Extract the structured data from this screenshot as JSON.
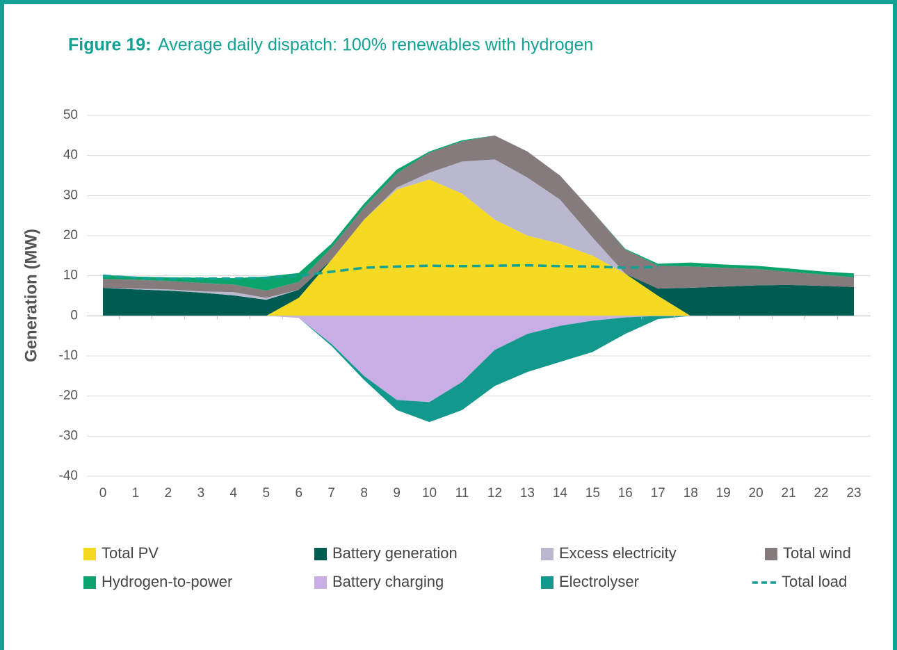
{
  "chart_data": {
    "type": "stacked_area",
    "figure_label": "Figure 19:",
    "title": "Average daily dispatch: 100% renewables with hydrogen",
    "y_label": "Generation (MW)",
    "categories": [
      0,
      1,
      2,
      3,
      4,
      5,
      6,
      7,
      8,
      9,
      10,
      11,
      12,
      13,
      14,
      15,
      16,
      17,
      18,
      19,
      20,
      21,
      22,
      23
    ],
    "ylim": [
      -40,
      50
    ],
    "yticks": [
      -40,
      -30,
      -20,
      -10,
      0,
      10,
      20,
      30,
      40,
      50
    ],
    "grid": true,
    "series": [
      {
        "name": "Total PV",
        "color": "#f5d923",
        "values": [
          0,
          0,
          0,
          0,
          0,
          0,
          4.5,
          14,
          24,
          31.5,
          34,
          30.5,
          24,
          20,
          18,
          15,
          10.5,
          5,
          0,
          0,
          0,
          0,
          0,
          0
        ]
      },
      {
        "name": "Battery generation",
        "color": "#005c50",
        "values": [
          7,
          6.6,
          6.3,
          5.8,
          5.1,
          4,
          2,
          0,
          0,
          0,
          0,
          0,
          0,
          0,
          0,
          0,
          0,
          1.8,
          7,
          7.3,
          7.6,
          7.7,
          7.5,
          7.2
        ]
      },
      {
        "name": "Excess electricity",
        "color": "#b9b8ce",
        "values": [
          0,
          0.2,
          0.3,
          0.3,
          0.8,
          0.5,
          0,
          0,
          0,
          0.5,
          1.7,
          8,
          15,
          14.5,
          11,
          4.5,
          0,
          0,
          0,
          0,
          0,
          0,
          0,
          0
        ]
      },
      {
        "name": "Total wind",
        "color": "#857b7d",
        "values": [
          2.2,
          2.2,
          2.1,
          2.1,
          1.9,
          1.8,
          2,
          3,
          3,
          3.5,
          5,
          5,
          6,
          6.5,
          6,
          6.5,
          6,
          5.7,
          5.3,
          4.7,
          4.1,
          3.3,
          2.8,
          2.4
        ]
      },
      {
        "name": "Hydrogen-to-power",
        "color": "#0aa36b",
        "values": [
          1,
          0.8,
          0.9,
          1.3,
          1.6,
          3.5,
          2.2,
          1,
          1,
          1,
          0.3,
          0.3,
          0,
          0,
          0,
          0,
          0.2,
          0.5,
          1,
          0.8,
          0.8,
          0.8,
          0.8,
          1
        ]
      },
      {
        "name": "Battery charging",
        "color": "#c9aee6",
        "values": [
          0,
          0,
          0,
          0,
          0,
          0,
          -0.5,
          -7,
          -15,
          -21,
          -21.5,
          -16.5,
          -8.5,
          -4.5,
          -2.5,
          -1.2,
          -0.4,
          0,
          0,
          0,
          0,
          0,
          0,
          0
        ]
      },
      {
        "name": "Electrolyser",
        "color": "#12988c",
        "values": [
          0,
          0,
          0,
          0,
          0,
          0,
          0,
          -0.5,
          -1,
          -2.5,
          -5,
          -7,
          -9,
          -9.5,
          -9,
          -7.8,
          -4.1,
          -0.8,
          0,
          0,
          0,
          0,
          0,
          0
        ]
      },
      {
        "name": "Total load",
        "color": "#12a294",
        "kind": "dashed_line",
        "values": [
          10,
          9.5,
          9.3,
          9.3,
          9.3,
          9.5,
          10,
          11,
          12,
          12.3,
          12.5,
          12.4,
          12.5,
          12.6,
          12.4,
          12.3,
          12,
          12.2,
          null,
          null,
          null,
          null,
          null,
          null
        ]
      }
    ]
  }
}
